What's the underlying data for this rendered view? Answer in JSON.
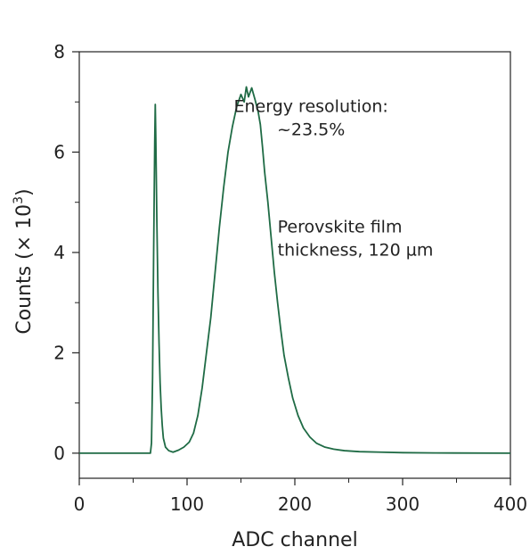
{
  "chart_data": {
    "type": "line",
    "xlabel": "ADC channel",
    "ylabel_main": "Counts (× 10",
    "ylabel_sup": "3",
    "ylabel_close": ")",
    "xlim": [
      0,
      400
    ],
    "ylim": [
      -0.5,
      8
    ],
    "xticks": [
      0,
      100,
      200,
      300,
      400
    ],
    "yticks": [
      0,
      2,
      4,
      6,
      8
    ],
    "grid": false,
    "line_color": "#1f6b45",
    "annotations": [
      {
        "id": "energy",
        "lines": [
          "Energy resolution:",
          "~23.5%"
        ],
        "x": 215,
        "y": 6.8
      },
      {
        "id": "thickness",
        "lines": [
          "Perovskite film",
          "thickness, 120 µm"
        ],
        "x": 184,
        "y": 4.4
      }
    ],
    "series": [
      {
        "points": [
          [
            0,
            0
          ],
          [
            66,
            0
          ],
          [
            67,
            0.2
          ],
          [
            68,
            1.5
          ],
          [
            69,
            4.0
          ],
          [
            70,
            6.2
          ],
          [
            70.5,
            6.95
          ],
          [
            71,
            6.3
          ],
          [
            72,
            4.6
          ],
          [
            73,
            3.2
          ],
          [
            74,
            2.2
          ],
          [
            75,
            1.4
          ],
          [
            76,
            0.9
          ],
          [
            77,
            0.55
          ],
          [
            78,
            0.3
          ],
          [
            80,
            0.12
          ],
          [
            83,
            0.05
          ],
          [
            87,
            0.02
          ],
          [
            92,
            0.06
          ],
          [
            97,
            0.12
          ],
          [
            102,
            0.22
          ],
          [
            106,
            0.4
          ],
          [
            110,
            0.75
          ],
          [
            114,
            1.3
          ],
          [
            118,
            2.0
          ],
          [
            122,
            2.7
          ],
          [
            126,
            3.6
          ],
          [
            130,
            4.5
          ],
          [
            134,
            5.3
          ],
          [
            138,
            6.0
          ],
          [
            142,
            6.5
          ],
          [
            146,
            6.9
          ],
          [
            150,
            7.15
          ],
          [
            153,
            7.0
          ],
          [
            155,
            7.3
          ],
          [
            157,
            7.1
          ],
          [
            160,
            7.28
          ],
          [
            163,
            7.05
          ],
          [
            166,
            6.8
          ],
          [
            168,
            6.55
          ],
          [
            170,
            6.1
          ],
          [
            172,
            5.6
          ],
          [
            175,
            5.0
          ],
          [
            178,
            4.3
          ],
          [
            181,
            3.6
          ],
          [
            184,
            3.0
          ],
          [
            187,
            2.45
          ],
          [
            190,
            1.95
          ],
          [
            194,
            1.5
          ],
          [
            198,
            1.1
          ],
          [
            203,
            0.75
          ],
          [
            208,
            0.5
          ],
          [
            214,
            0.32
          ],
          [
            220,
            0.2
          ],
          [
            228,
            0.12
          ],
          [
            236,
            0.08
          ],
          [
            246,
            0.05
          ],
          [
            260,
            0.03
          ],
          [
            280,
            0.02
          ],
          [
            300,
            0.01
          ],
          [
            330,
            0.005
          ],
          [
            400,
            0
          ]
        ]
      }
    ]
  }
}
